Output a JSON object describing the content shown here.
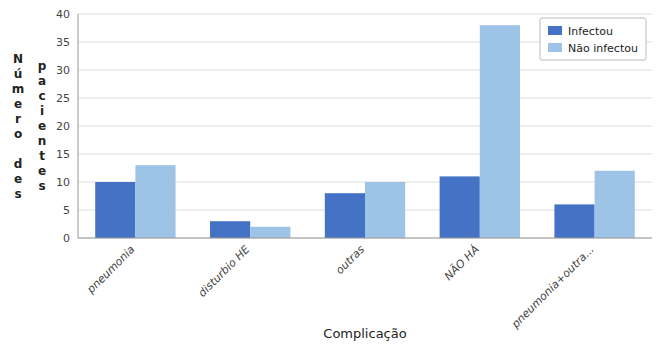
{
  "chart_data": {
    "type": "bar",
    "categories": [
      "pneumonia",
      "disturbio HE",
      "outras",
      "NÃO HÁ",
      "pneumonia+outra..."
    ],
    "series": [
      {
        "name": "Infectou",
        "color": "#4472C4",
        "values": [
          10,
          3,
          8,
          11,
          6
        ]
      },
      {
        "name": "Não infectou",
        "color": "#9DC3E6",
        "values": [
          13,
          2,
          10,
          38,
          12
        ]
      }
    ],
    "xlabel": "Complicação",
    "ylabel": [
      "Número des",
      "pacientes"
    ],
    "ylim": [
      0,
      40
    ],
    "yticks": [
      0,
      5,
      10,
      15,
      20,
      25,
      30,
      35,
      40
    ],
    "grid": true,
    "legend": "upper right"
  }
}
